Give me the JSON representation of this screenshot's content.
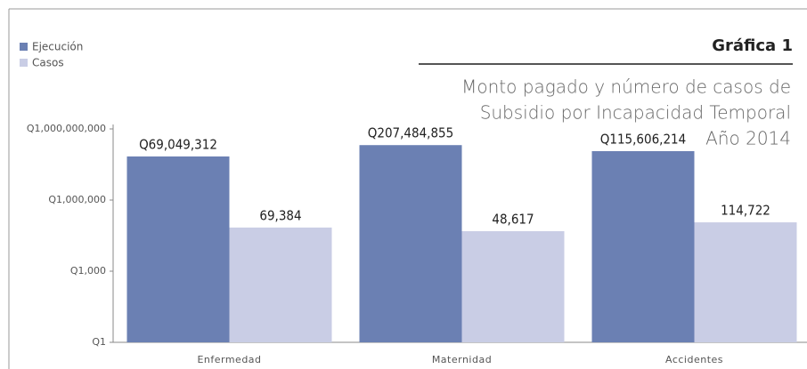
{
  "chart_data": {
    "type": "bar",
    "title": "Gráfica 1",
    "subtitle": [
      "Monto pagado y número de casos de",
      "Subsidio por Incapacidad Temporal",
      "Año 2014"
    ],
    "categories": [
      "Enfermedad",
      "Maternidad",
      "Accidentes"
    ],
    "series": [
      {
        "name": "Ejecución",
        "color": "#6b80b3",
        "values": [
          69049312,
          207484855,
          115606214
        ],
        "value_labels": [
          "Q69,049,312",
          "Q207,484,855",
          "Q115,606,214"
        ]
      },
      {
        "name": "Casos",
        "color": "#c9cde5",
        "values": [
          69384,
          48617,
          114722
        ],
        "value_labels": [
          "69,384",
          "48,617",
          "114,722"
        ]
      }
    ],
    "log_scale": true,
    "ylim": [
      1,
      1000000000
    ],
    "yticks": [
      {
        "value": 1,
        "label": "Q1"
      },
      {
        "value": 1000,
        "label": "Q1,000"
      },
      {
        "value": 1000000,
        "label": "Q1,000,000"
      },
      {
        "value": 1000000000,
        "label": "Q1,000,000,000"
      }
    ],
    "legend": "upper left"
  }
}
